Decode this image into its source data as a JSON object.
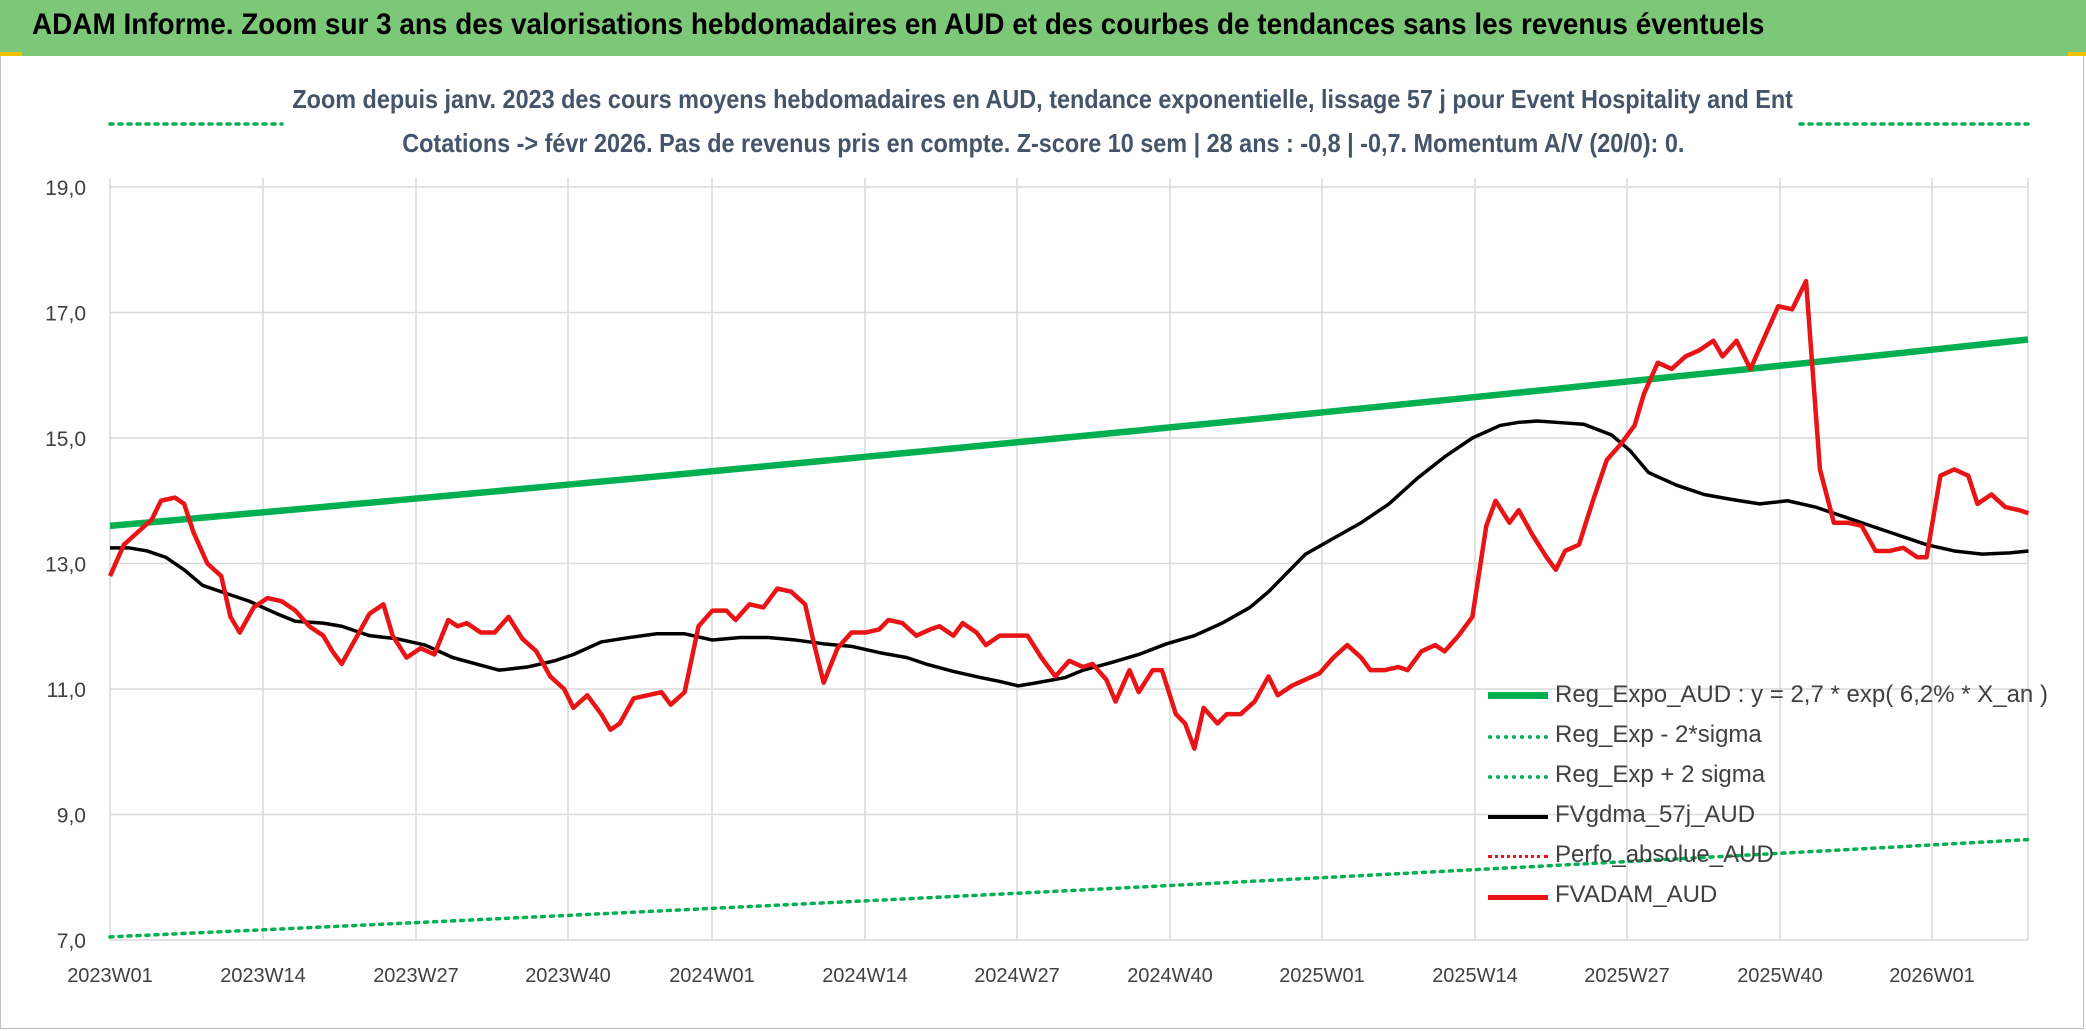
{
  "banner": {
    "title": "ADAM Informe. Zoom sur 3 ans des valorisations hebdomadaires en AUD et des courbes de tendances sans les revenus éventuels"
  },
  "colors": {
    "banner": "#7dc878",
    "reg_expo": "#00b050",
    "fvgdma": "#000000",
    "fvadam": "#e81416",
    "perfo": "#e81416",
    "gridlines": "#d9d9d9",
    "subtitle": "#44546a"
  },
  "chart_data": {
    "type": "line",
    "title_line1": "Zoom depuis janv. 2023 des cours moyens hebdomadaires en AUD, tendance exponentielle, lissage 57 j pour Event Hospitality and Ent",
    "title_line2": "Cotations -> févr 2026. Pas de revenus pris en compte. Z-score 10 sem | 28 ans : -0,8 | -0,7. Momentum A/V (20/0): 0.",
    "ylim": [
      7,
      20
    ],
    "y_ticks": [
      "7,0",
      "9,0",
      "11,0",
      "13,0",
      "15,0",
      "17,0",
      "19,0"
    ],
    "x_tick_labels": [
      "2023W01",
      "2023W14",
      "2023W27",
      "2023W40",
      "2024W01",
      "2024W14",
      "2024W27",
      "2024W40",
      "2025W01",
      "2025W14",
      "2025W27",
      "2025W40",
      "2026W01"
    ],
    "x_count": 163,
    "grid": true,
    "legend_position": "bottom-right",
    "series": [
      {
        "name": "Reg_Expo_AUD : y = 2,7 * exp( 6,2% *  X_an )",
        "style": "solid-thick",
        "color": "#00b050",
        "start": 13.6,
        "end": 16.57
      },
      {
        "name": "Reg_Exp - 2*sigma",
        "style": "dotted",
        "color": "#00b050",
        "start": 7.05,
        "end": 8.6
      },
      {
        "name": "Reg_Exp + 2 sigma",
        "style": "dotted",
        "color": "#00b050",
        "start": 19.9,
        "end": 19.9
      },
      {
        "name": "FVgdma_57j_AUD",
        "style": "solid",
        "color": "#000000",
        "points": [
          [
            0,
            13.25
          ],
          [
            4,
            13.25
          ],
          [
            8,
            13.2
          ],
          [
            12,
            13.1
          ],
          [
            16,
            12.9
          ],
          [
            20,
            12.65
          ],
          [
            24,
            12.55
          ],
          [
            30,
            12.4
          ],
          [
            36,
            12.2
          ],
          [
            40,
            12.08
          ],
          [
            46,
            12.05
          ],
          [
            50,
            12.0
          ],
          [
            56,
            11.85
          ],
          [
            62,
            11.8
          ],
          [
            68,
            11.7
          ],
          [
            74,
            11.5
          ],
          [
            80,
            11.38
          ],
          [
            84,
            11.3
          ],
          [
            90,
            11.35
          ],
          [
            96,
            11.45
          ],
          [
            100,
            11.55
          ],
          [
            106,
            11.75
          ],
          [
            112,
            11.82
          ],
          [
            118,
            11.88
          ],
          [
            124,
            11.88
          ],
          [
            130,
            11.78
          ],
          [
            136,
            11.82
          ],
          [
            142,
            11.82
          ],
          [
            148,
            11.78
          ],
          [
            154,
            11.72
          ],
          [
            160,
            11.68
          ],
          [
            166,
            11.58
          ],
          [
            172,
            11.5
          ],
          [
            176,
            11.4
          ],
          [
            182,
            11.28
          ],
          [
            188,
            11.18
          ],
          [
            192,
            11.12
          ],
          [
            196,
            11.05
          ],
          [
            200,
            11.1
          ],
          [
            206,
            11.18
          ],
          [
            210,
            11.3
          ],
          [
            216,
            11.42
          ],
          [
            222,
            11.55
          ],
          [
            228,
            11.72
          ],
          [
            234,
            11.85
          ],
          [
            240,
            12.05
          ],
          [
            246,
            12.3
          ],
          [
            250,
            12.55
          ],
          [
            254,
            12.85
          ],
          [
            258,
            13.15
          ],
          [
            264,
            13.4
          ],
          [
            270,
            13.65
          ],
          [
            276,
            13.95
          ],
          [
            282,
            14.35
          ],
          [
            288,
            14.7
          ],
          [
            294,
            15.0
          ],
          [
            300,
            15.2
          ],
          [
            304,
            15.25
          ],
          [
            308,
            15.27
          ],
          [
            312,
            15.25
          ],
          [
            318,
            15.22
          ],
          [
            324,
            15.05
          ],
          [
            328,
            14.8
          ],
          [
            332,
            14.45
          ],
          [
            338,
            14.25
          ],
          [
            344,
            14.1
          ],
          [
            350,
            14.02
          ],
          [
            356,
            13.95
          ],
          [
            362,
            14.0
          ],
          [
            368,
            13.9
          ],
          [
            374,
            13.75
          ],
          [
            380,
            13.6
          ],
          [
            386,
            13.45
          ],
          [
            392,
            13.3
          ],
          [
            398,
            13.2
          ],
          [
            404,
            13.15
          ],
          [
            410,
            13.17
          ],
          [
            414,
            13.2
          ]
        ]
      },
      {
        "name": "Perfo_absolue_AUD",
        "style": "dotted",
        "color": "#e81416",
        "points": []
      },
      {
        "name": "FVADAM_AUD",
        "style": "solid-thick",
        "color": "#e81416",
        "points": [
          [
            0,
            12.8
          ],
          [
            3,
            13.3
          ],
          [
            6,
            13.5
          ],
          [
            9,
            13.7
          ],
          [
            11,
            14.0
          ],
          [
            14,
            14.05
          ],
          [
            16,
            13.95
          ],
          [
            18,
            13.5
          ],
          [
            21,
            13.0
          ],
          [
            24,
            12.8
          ],
          [
            26,
            12.15
          ],
          [
            28,
            11.9
          ],
          [
            31,
            12.3
          ],
          [
            34,
            12.45
          ],
          [
            37,
            12.4
          ],
          [
            40,
            12.25
          ],
          [
            43,
            12.0
          ],
          [
            46,
            11.85
          ],
          [
            48,
            11.6
          ],
          [
            50,
            11.4
          ],
          [
            53,
            11.8
          ],
          [
            56,
            12.2
          ],
          [
            59,
            12.35
          ],
          [
            61,
            11.85
          ],
          [
            64,
            11.5
          ],
          [
            67,
            11.65
          ],
          [
            70,
            11.55
          ],
          [
            73,
            12.1
          ],
          [
            75,
            12.0
          ],
          [
            77,
            12.05
          ],
          [
            80,
            11.9
          ],
          [
            83,
            11.9
          ],
          [
            86,
            12.15
          ],
          [
            89,
            11.8
          ],
          [
            92,
            11.6
          ],
          [
            95,
            11.2
          ],
          [
            98,
            11.0
          ],
          [
            100,
            10.7
          ],
          [
            103,
            10.9
          ],
          [
            106,
            10.6
          ],
          [
            108,
            10.35
          ],
          [
            110,
            10.45
          ],
          [
            113,
            10.85
          ],
          [
            116,
            10.9
          ],
          [
            119,
            10.95
          ],
          [
            121,
            10.75
          ],
          [
            124,
            10.95
          ],
          [
            127,
            12.0
          ],
          [
            130,
            12.25
          ],
          [
            133,
            12.25
          ],
          [
            135,
            12.1
          ],
          [
            138,
            12.35
          ],
          [
            141,
            12.3
          ],
          [
            144,
            12.6
          ],
          [
            147,
            12.55
          ],
          [
            150,
            12.35
          ],
          [
            152,
            11.7
          ],
          [
            154,
            11.1
          ],
          [
            157,
            11.65
          ],
          [
            160,
            11.9
          ],
          [
            163,
            11.9
          ],
          [
            166,
            11.95
          ],
          [
            168,
            12.1
          ],
          [
            171,
            12.05
          ],
          [
            174,
            11.85
          ],
          [
            177,
            11.95
          ],
          [
            179,
            12.0
          ],
          [
            182,
            11.85
          ],
          [
            184,
            12.05
          ],
          [
            187,
            11.9
          ],
          [
            189,
            11.7
          ],
          [
            192,
            11.85
          ],
          [
            195,
            11.85
          ],
          [
            198,
            11.85
          ],
          [
            201,
            11.5
          ],
          [
            204,
            11.2
          ],
          [
            207,
            11.45
          ],
          [
            210,
            11.35
          ],
          [
            212,
            11.4
          ],
          [
            215,
            11.15
          ],
          [
            217,
            10.8
          ],
          [
            220,
            11.3
          ],
          [
            222,
            10.95
          ],
          [
            225,
            11.3
          ],
          [
            227,
            11.3
          ],
          [
            230,
            10.6
          ],
          [
            232,
            10.45
          ],
          [
            234,
            10.05
          ],
          [
            236,
            10.7
          ],
          [
            239,
            10.45
          ],
          [
            241,
            10.6
          ],
          [
            244,
            10.6
          ],
          [
            247,
            10.8
          ],
          [
            250,
            11.2
          ],
          [
            252,
            10.9
          ],
          [
            255,
            11.05
          ],
          [
            258,
            11.15
          ],
          [
            261,
            11.25
          ],
          [
            264,
            11.5
          ],
          [
            267,
            11.7
          ],
          [
            270,
            11.5
          ],
          [
            272,
            11.3
          ],
          [
            275,
            11.3
          ],
          [
            278,
            11.35
          ],
          [
            280,
            11.3
          ],
          [
            283,
            11.6
          ],
          [
            286,
            11.7
          ],
          [
            288,
            11.6
          ],
          [
            291,
            11.85
          ],
          [
            294,
            12.15
          ],
          [
            297,
            13.6
          ],
          [
            299,
            14.0
          ],
          [
            302,
            13.65
          ],
          [
            304,
            13.85
          ],
          [
            307,
            13.45
          ],
          [
            310,
            13.1
          ],
          [
            312,
            12.9
          ],
          [
            314,
            13.2
          ],
          [
            317,
            13.3
          ],
          [
            320,
            14.0
          ],
          [
            323,
            14.65
          ],
          [
            326,
            14.9
          ],
          [
            329,
            15.2
          ],
          [
            331,
            15.7
          ],
          [
            334,
            16.2
          ],
          [
            337,
            16.1
          ],
          [
            340,
            16.3
          ],
          [
            343,
            16.4
          ],
          [
            346,
            16.55
          ],
          [
            348,
            16.3
          ],
          [
            351,
            16.55
          ],
          [
            354,
            16.1
          ],
          [
            357,
            16.6
          ],
          [
            360,
            17.1
          ],
          [
            363,
            17.05
          ],
          [
            366,
            17.5
          ],
          [
            369,
            14.5
          ],
          [
            372,
            13.65
          ],
          [
            375,
            13.65
          ],
          [
            378,
            13.6
          ],
          [
            381,
            13.2
          ],
          [
            384,
            13.2
          ],
          [
            387,
            13.25
          ],
          [
            390,
            13.1
          ],
          [
            392,
            13.1
          ],
          [
            395,
            14.4
          ],
          [
            398,
            14.5
          ],
          [
            401,
            14.4
          ],
          [
            403,
            13.95
          ],
          [
            406,
            14.1
          ],
          [
            409,
            13.9
          ],
          [
            412,
            13.85
          ],
          [
            414,
            13.8
          ]
        ]
      }
    ]
  }
}
